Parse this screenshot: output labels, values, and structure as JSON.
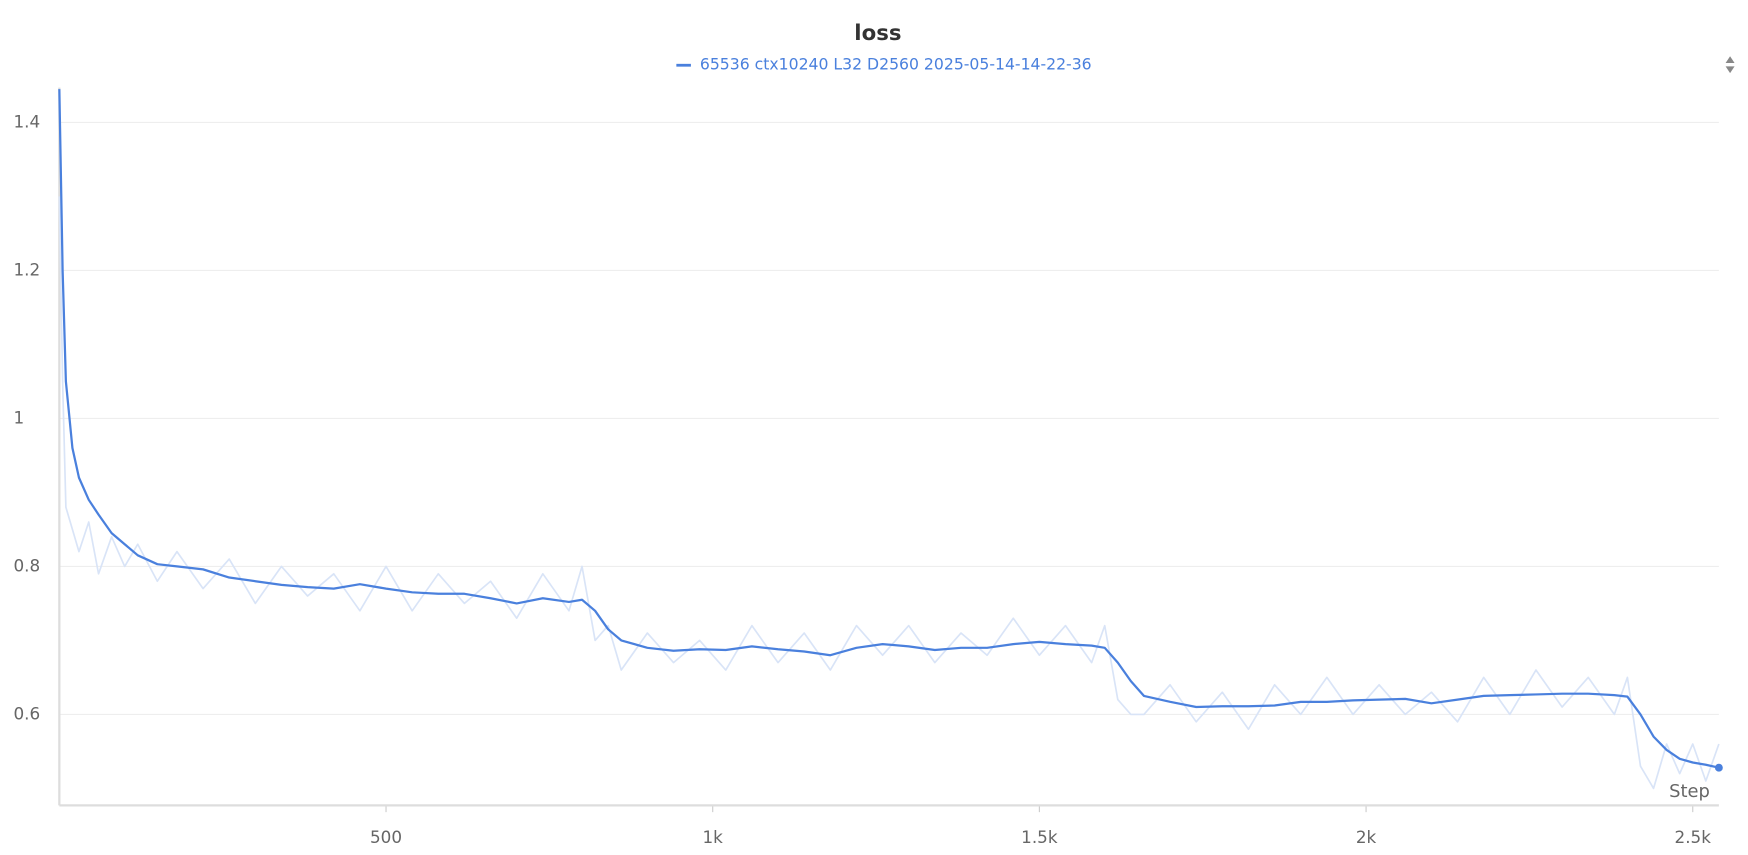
{
  "chart_data": {
    "type": "line",
    "title": "loss",
    "x_label": "Step",
    "x": [
      0,
      5,
      10,
      20,
      30,
      45,
      60,
      80,
      100,
      120,
      150,
      180,
      220,
      260,
      300,
      340,
      380,
      420,
      460,
      500,
      540,
      580,
      620,
      660,
      700,
      740,
      780,
      800,
      820,
      840,
      860,
      900,
      940,
      980,
      1020,
      1060,
      1100,
      1140,
      1180,
      1220,
      1260,
      1300,
      1340,
      1380,
      1420,
      1460,
      1500,
      1540,
      1580,
      1600,
      1620,
      1640,
      1660,
      1700,
      1740,
      1780,
      1820,
      1860,
      1900,
      1940,
      1980,
      2020,
      2060,
      2100,
      2140,
      2180,
      2220,
      2260,
      2300,
      2340,
      2380,
      2400,
      2420,
      2440,
      2460,
      2480,
      2500,
      2520,
      2540
    ],
    "series": [
      {
        "name": "65536 ctx10240 L32 D2560 2025-05-14-14-22-36",
        "color": "#4a80dd",
        "values": [
          1.445,
          1.2,
          1.05,
          0.96,
          0.92,
          0.89,
          0.87,
          0.845,
          0.83,
          0.815,
          0.803,
          0.8,
          0.796,
          0.785,
          0.78,
          0.775,
          0.772,
          0.77,
          0.776,
          0.77,
          0.765,
          0.763,
          0.763,
          0.757,
          0.75,
          0.757,
          0.752,
          0.755,
          0.74,
          0.715,
          0.7,
          0.69,
          0.686,
          0.688,
          0.687,
          0.692,
          0.688,
          0.685,
          0.68,
          0.69,
          0.695,
          0.692,
          0.687,
          0.69,
          0.69,
          0.695,
          0.698,
          0.695,
          0.693,
          0.69,
          0.67,
          0.645,
          0.625,
          0.617,
          0.61,
          0.611,
          0.611,
          0.612,
          0.617,
          0.617,
          0.619,
          0.62,
          0.621,
          0.615,
          0.62,
          0.625,
          0.626,
          0.627,
          0.628,
          0.628,
          0.626,
          0.624,
          0.6,
          0.57,
          0.552,
          0.54,
          0.535,
          0.532,
          0.528
        ]
      }
    ],
    "raw": {
      "color": "#d9e4f7",
      "values": [
        1.3,
        1.05,
        0.88,
        0.85,
        0.82,
        0.86,
        0.79,
        0.84,
        0.8,
        0.83,
        0.78,
        0.82,
        0.77,
        0.81,
        0.75,
        0.8,
        0.76,
        0.79,
        0.74,
        0.8,
        0.74,
        0.79,
        0.75,
        0.78,
        0.73,
        0.79,
        0.74,
        0.8,
        0.7,
        0.72,
        0.66,
        0.71,
        0.67,
        0.7,
        0.66,
        0.72,
        0.67,
        0.71,
        0.66,
        0.72,
        0.68,
        0.72,
        0.67,
        0.71,
        0.68,
        0.73,
        0.68,
        0.72,
        0.67,
        0.72,
        0.62,
        0.6,
        0.6,
        0.64,
        0.59,
        0.63,
        0.58,
        0.64,
        0.6,
        0.65,
        0.6,
        0.64,
        0.6,
        0.63,
        0.59,
        0.65,
        0.6,
        0.66,
        0.61,
        0.65,
        0.6,
        0.65,
        0.53,
        0.5,
        0.56,
        0.52,
        0.56,
        0.51,
        0.56
      ]
    },
    "xlim": [
      0,
      2540
    ],
    "ylim": [
      0.477,
      1.447
    ],
    "xticks": [
      {
        "value": 500,
        "label": "500"
      },
      {
        "value": 1000,
        "label": "1k"
      },
      {
        "value": 1500,
        "label": "1.5k"
      },
      {
        "value": 2000,
        "label": "2k"
      },
      {
        "value": 2500,
        "label": "2.5k"
      }
    ],
    "yticks": [
      0.6,
      0.8,
      1,
      1.2,
      1.4
    ],
    "grid": true
  }
}
